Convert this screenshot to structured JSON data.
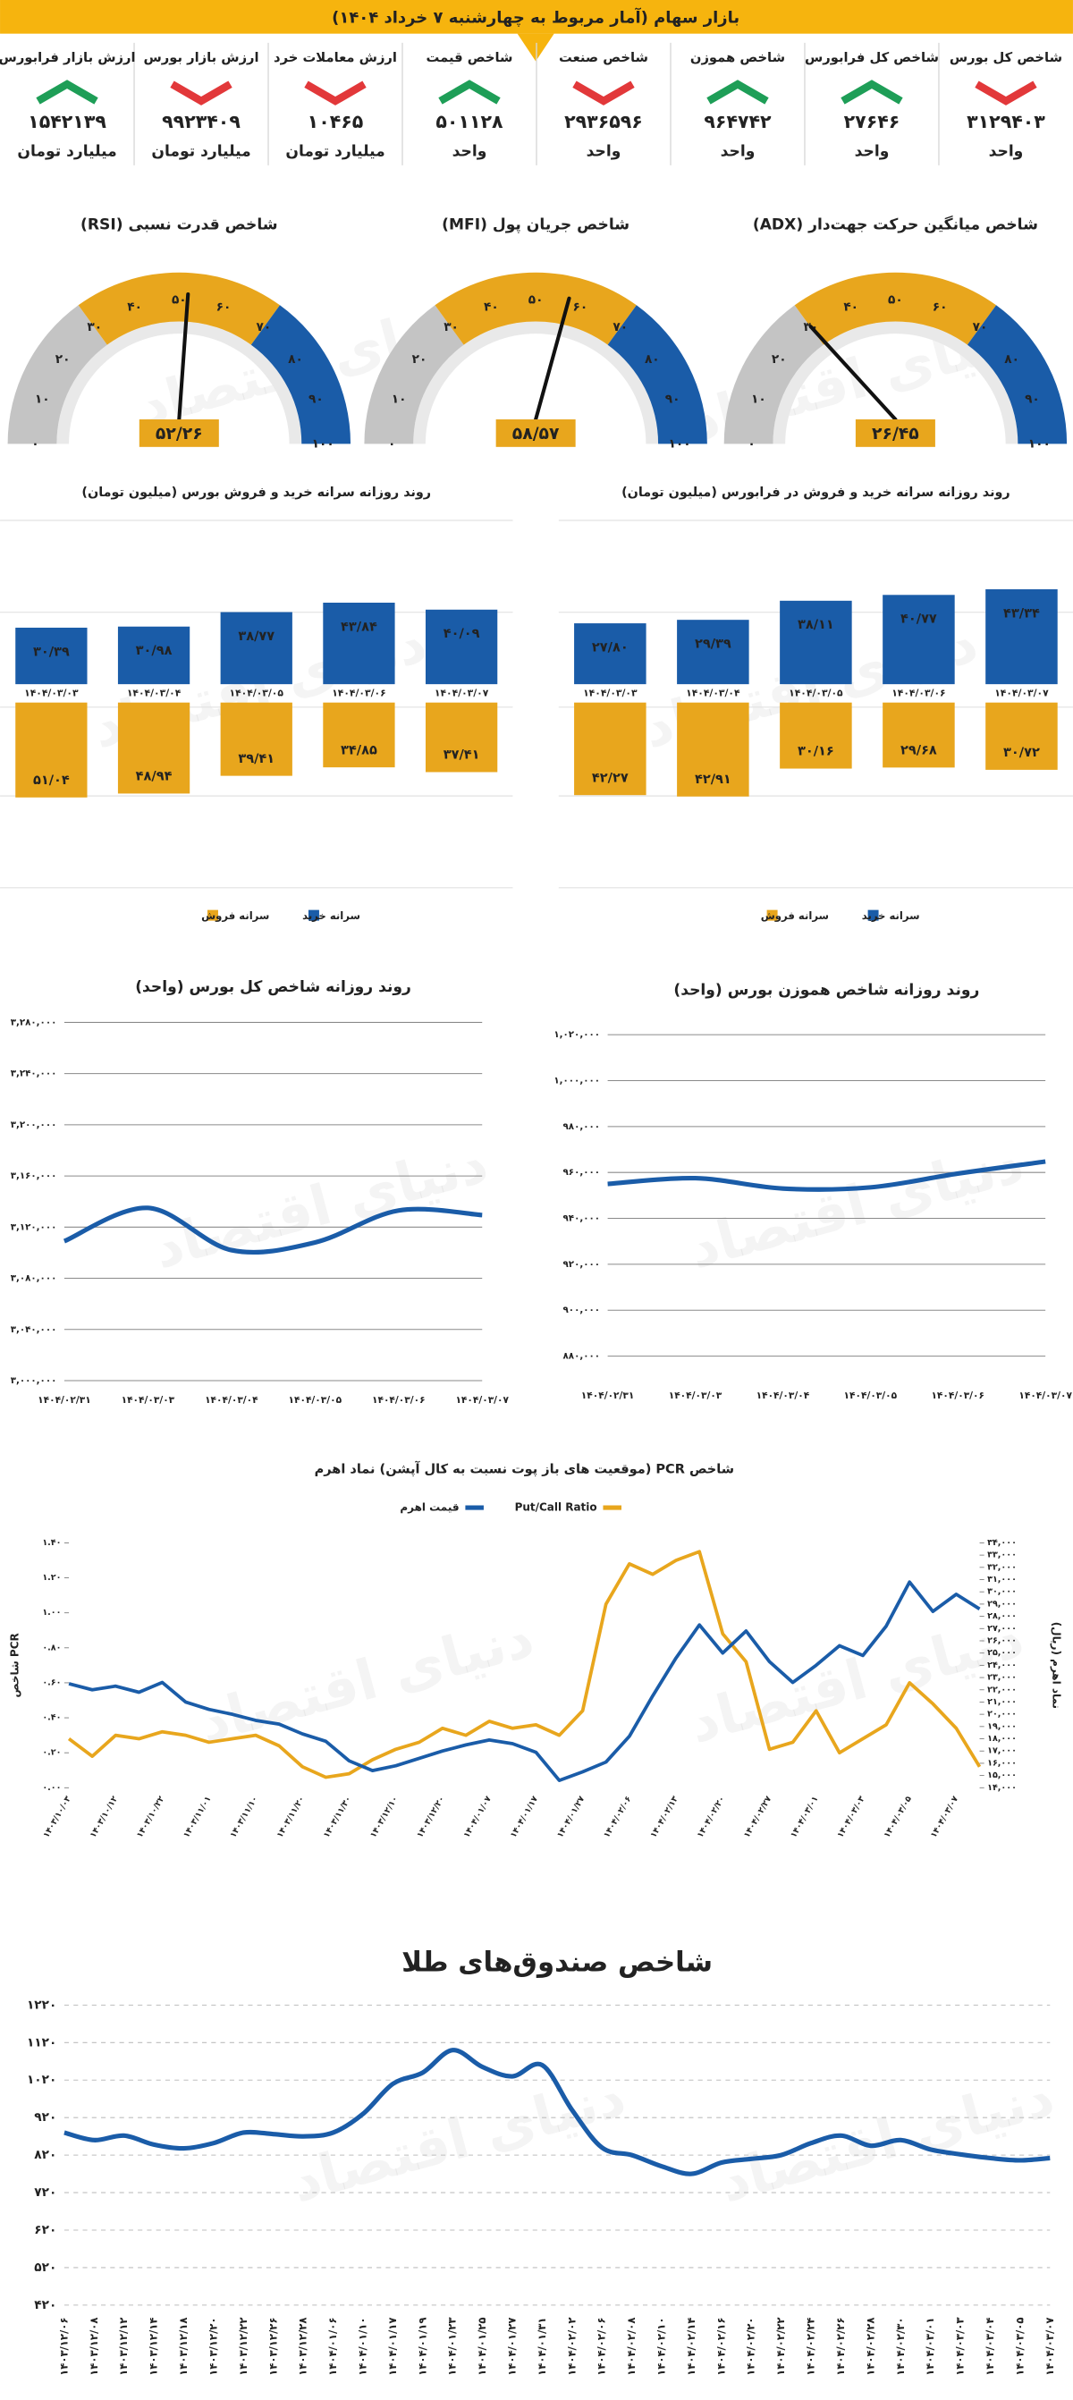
{
  "header": {
    "title": "بازار سهام (آمار مربوط به چهارشنبه ۷ خرداد ۱۴۰۴)"
  },
  "watermark": "دنیای اقتصاد",
  "trend_colors": {
    "up": "#1e9e57",
    "down": "#e2383a"
  },
  "indicators": [
    {
      "label": "شاخص کل بورس",
      "value": "۳۱۲۹۴۰۳",
      "unit": "واحد",
      "trend": "down"
    },
    {
      "label": "شاخص کل فرابورس",
      "value": "۲۷۶۴۶",
      "unit": "واحد",
      "trend": "up"
    },
    {
      "label": "شاخص هموزن",
      "value": "۹۶۴۷۴۲",
      "unit": "واحد",
      "trend": "up"
    },
    {
      "label": "شاخص صنعت",
      "value": "۲۹۳۶۵۹۶",
      "unit": "واحد",
      "trend": "down"
    },
    {
      "label": "شاخص قیمت",
      "value": "۵۰۱۱۲۸",
      "unit": "واحد",
      "trend": "up"
    },
    {
      "label": "ارزش معاملات خرد",
      "value": "۱۰۴۶۵",
      "unit": "میلیارد تومان",
      "trend": "down"
    },
    {
      "label": "ارزش بازار بورس",
      "value": "۹۹۲۳۴۰۹",
      "unit": "میلیارد تومان",
      "trend": "down"
    },
    {
      "label": "ارزش بازار فرابورس",
      "value": "۱۵۴۲۱۳۹",
      "unit": "میلیارد تومان",
      "trend": "up"
    }
  ],
  "chart_data": [
    {
      "type": "gauge",
      "title": "شاخص میانگین حرکت جهت‌دار (ADX)",
      "value": 26.45,
      "value_label": "۲۶/۴۵",
      "xlim": [
        0,
        100
      ],
      "xticks": [
        {
          "value": 0,
          "label": "۰"
        },
        {
          "value": 10,
          "label": "۱۰"
        },
        {
          "value": 20,
          "label": "۲۰"
        },
        {
          "value": 30,
          "label": "۳۰"
        },
        {
          "value": 40,
          "label": "۴۰"
        },
        {
          "value": 50,
          "label": "۵۰"
        },
        {
          "value": 60,
          "label": "۶۰"
        },
        {
          "value": 70,
          "label": "۷۰"
        },
        {
          "value": 80,
          "label": "۸۰"
        },
        {
          "value": 90,
          "label": "۹۰"
        },
        {
          "value": 100,
          "label": "۱۰۰"
        }
      ],
      "bands": [
        {
          "range": [
            0,
            30
          ],
          "color": "#c4c4c4"
        },
        {
          "range": [
            30,
            70
          ],
          "color": "#e8a61d"
        },
        {
          "range": [
            70,
            100
          ],
          "color": "#1a5ca8"
        }
      ]
    },
    {
      "type": "gauge",
      "title": "شاخص جریان پول (MFI)",
      "value": 58.57,
      "value_label": "۵۸/۵۷",
      "xlim": [
        0,
        100
      ],
      "xticks": [
        {
          "value": 0,
          "label": "۰"
        },
        {
          "value": 10,
          "label": "۱۰"
        },
        {
          "value": 20,
          "label": "۲۰"
        },
        {
          "value": 30,
          "label": "۳۰"
        },
        {
          "value": 40,
          "label": "۴۰"
        },
        {
          "value": 50,
          "label": "۵۰"
        },
        {
          "value": 60,
          "label": "۶۰"
        },
        {
          "value": 70,
          "label": "۷۰"
        },
        {
          "value": 80,
          "label": "۸۰"
        },
        {
          "value": 90,
          "label": "۹۰"
        },
        {
          "value": 100,
          "label": "۱۰۰"
        }
      ],
      "bands": [
        {
          "range": [
            0,
            30
          ],
          "color": "#c4c4c4"
        },
        {
          "range": [
            30,
            70
          ],
          "color": "#e8a61d"
        },
        {
          "range": [
            70,
            100
          ],
          "color": "#1a5ca8"
        }
      ]
    },
    {
      "type": "gauge",
      "title": "شاخص قدرت نسبی (RSI)",
      "value": 52.26,
      "value_label": "۵۲/۲۶",
      "xlim": [
        0,
        100
      ],
      "xticks": [
        {
          "value": 0,
          "label": "۰"
        },
        {
          "value": 10,
          "label": "۱۰"
        },
        {
          "value": 20,
          "label": "۲۰"
        },
        {
          "value": 30,
          "label": "۳۰"
        },
        {
          "value": 40,
          "label": "۴۰"
        },
        {
          "value": 50,
          "label": "۵۰"
        },
        {
          "value": 60,
          "label": "۶۰"
        },
        {
          "value": 70,
          "label": "۷۰"
        },
        {
          "value": 80,
          "label": "۸۰"
        },
        {
          "value": 90,
          "label": "۹۰"
        },
        {
          "value": 100,
          "label": "۱۰۰"
        }
      ],
      "bands": [
        {
          "range": [
            0,
            30
          ],
          "color": "#c4c4c4"
        },
        {
          "range": [
            30,
            70
          ],
          "color": "#e8a61d"
        },
        {
          "range": [
            70,
            100
          ],
          "color": "#1a5ca8"
        }
      ]
    },
    {
      "type": "bar",
      "title": "روند روزانه سرانه خرید و فروش بورس (میلیون تومان)",
      "categories": [
        "۱۴۰۴/۰۳/۰۳",
        "۱۴۰۴/۰۳/۰۴",
        "۱۴۰۴/۰۳/۰۵",
        "۱۴۰۴/۰۳/۰۶",
        "۱۴۰۴/۰۳/۰۷"
      ],
      "series": [
        {
          "name": "سرانه خرید",
          "color": "#1a5ca8",
          "values": [
            30.39,
            30.98,
            38.77,
            43.84,
            40.09
          ],
          "value_labels": [
            "۳۰/۳۹",
            "۳۰/۹۸",
            "۳۸/۷۷",
            "۴۳/۸۴",
            "۴۰/۰۹"
          ]
        },
        {
          "name": "سرانه فروش",
          "color": "#e8a61d",
          "values": [
            51.04,
            48.94,
            39.41,
            34.85,
            37.41
          ],
          "value_labels": [
            "۵۱/۰۴",
            "۴۸/۹۴",
            "۳۹/۴۱",
            "۳۴/۸۵",
            "۳۷/۴۱"
          ]
        }
      ],
      "legend": "bottom"
    },
    {
      "type": "bar",
      "title": "روند روزانه سرانه خرید و فروش در فرابورس (میلیون تومان)",
      "categories": [
        "۱۴۰۴/۰۳/۰۳",
        "۱۴۰۴/۰۳/۰۴",
        "۱۴۰۴/۰۳/۰۵",
        "۱۴۰۴/۰۳/۰۶",
        "۱۴۰۴/۰۳/۰۷"
      ],
      "series": [
        {
          "name": "سرانه خرید",
          "color": "#1a5ca8",
          "values": [
            27.8,
            29.39,
            38.11,
            40.77,
            43.34
          ],
          "value_labels": [
            "۲۷/۸۰",
            "۲۹/۳۹",
            "۳۸/۱۱",
            "۴۰/۷۷",
            "۴۳/۳۴"
          ]
        },
        {
          "name": "سرانه فروش",
          "color": "#e8a61d",
          "values": [
            42.27,
            42.91,
            30.16,
            29.68,
            30.72
          ],
          "value_labels": [
            "۴۲/۲۷",
            "۴۲/۹۱",
            "۳۰/۱۶",
            "۲۹/۶۸",
            "۳۰/۷۲"
          ]
        }
      ],
      "legend": "bottom"
    },
    {
      "type": "line",
      "title": "روند روزانه شاخص کل بورس (واحد)",
      "categories": [
        "۱۴۰۴/۰۲/۳۱",
        "۱۴۰۴/۰۳/۰۳",
        "۱۴۰۴/۰۳/۰۴",
        "۱۴۰۴/۰۳/۰۵",
        "۱۴۰۴/۰۳/۰۶",
        "۱۴۰۴/۰۳/۰۷"
      ],
      "series": [
        {
          "color": "#1a5ca8",
          "values": [
            3109000,
            3135000,
            3102000,
            3108000,
            3133000,
            3129403
          ]
        }
      ],
      "ylim": [
        3000000,
        3280000
      ],
      "yticks": [
        {
          "value": 3000000,
          "label": "۳,۰۰۰,۰۰۰"
        },
        {
          "value": 3040000,
          "label": "۳,۰۴۰,۰۰۰"
        },
        {
          "value": 3080000,
          "label": "۳,۰۸۰,۰۰۰"
        },
        {
          "value": 3120000,
          "label": "۳,۱۲۰,۰۰۰"
        },
        {
          "value": 3160000,
          "label": "۳,۱۶۰,۰۰۰"
        },
        {
          "value": 3200000,
          "label": "۳,۲۰۰,۰۰۰"
        },
        {
          "value": 3240000,
          "label": "۳,۲۴۰,۰۰۰"
        },
        {
          "value": 3280000,
          "label": "۳,۲۸۰,۰۰۰"
        }
      ],
      "grid": true,
      "smooth": true
    },
    {
      "type": "line",
      "title": "روند روزانه شاخص هموزن بورس (واحد)",
      "categories": [
        "۱۴۰۴/۰۲/۳۱",
        "۱۴۰۴/۰۳/۰۳",
        "۱۴۰۴/۰۳/۰۴",
        "۱۴۰۴/۰۳/۰۵",
        "۱۴۰۴/۰۳/۰۶",
        "۱۴۰۴/۰۳/۰۷"
      ],
      "series": [
        {
          "color": "#1a5ca8",
          "values": [
            955000,
            957500,
            953000,
            953500,
            959500,
            964742
          ]
        }
      ],
      "ylim": [
        880000,
        1020000
      ],
      "yticks": [
        {
          "value": 880000,
          "label": "۸۸۰,۰۰۰"
        },
        {
          "value": 900000,
          "label": "۹۰۰,۰۰۰"
        },
        {
          "value": 920000,
          "label": "۹۲۰,۰۰۰"
        },
        {
          "value": 940000,
          "label": "۹۴۰,۰۰۰"
        },
        {
          "value": 960000,
          "label": "۹۶۰,۰۰۰"
        },
        {
          "value": 980000,
          "label": "۹۸۰,۰۰۰"
        },
        {
          "value": 1000000,
          "label": "۱,۰۰۰,۰۰۰"
        },
        {
          "value": 1020000,
          "label": "۱,۰۲۰,۰۰۰"
        }
      ],
      "grid": true,
      "smooth": true
    },
    {
      "type": "line",
      "title": "شاخص PCR (موقعیت های باز پوت نسبت به کال آپشن) نماد اهرم",
      "ylabel": "شاخص PCR",
      "y2label": "نماد اهرم (ریال)",
      "legend": "top",
      "categories": [
        "۱۴۰۳/۱۰/۰۳",
        null,
        "۱۴۰۳/۱۰/۱۲",
        null,
        "۱۴۰۳/۱۰/۲۲",
        null,
        "۱۴۰۳/۱۱/۰۱",
        null,
        "۱۴۰۳/۱۱/۱۰",
        null,
        "۱۴۰۳/۱۱/۲۰",
        null,
        "۱۴۰۳/۱۱/۳۰",
        null,
        "۱۴۰۳/۱۲/۱۰",
        null,
        "۱۴۰۳/۱۲/۲۰",
        null,
        "۱۴۰۴/۰۱/۰۷",
        null,
        "۱۴۰۴/۰۱/۱۷",
        null,
        "۱۴۰۴/۰۱/۲۷",
        null,
        "۱۴۰۴/۰۲/۰۶",
        null,
        "۱۴۰۴/۰۲/۱۳",
        null,
        "۱۴۰۴/۰۲/۲۰",
        null,
        "۱۴۰۴/۰۲/۲۷",
        null,
        "۱۴۰۴/۰۳/۰۱",
        null,
        "۱۴۰۴/۰۳/۰۳",
        null,
        "۱۴۰۴/۰۳/۰۵",
        null,
        "۱۴۰۴/۰۳/۰۷",
        null
      ],
      "series": [
        {
          "name": "Put/Call Ratio",
          "color": "#e8a61d",
          "values": [
            0.28,
            0.18,
            0.3,
            0.28,
            0.32,
            0.3,
            0.26,
            0.28,
            0.3,
            0.24,
            0.12,
            0.06,
            0.08,
            0.16,
            0.22,
            0.26,
            0.34,
            0.3,
            0.38,
            0.34,
            0.36,
            0.3,
            0.44,
            1.05,
            1.28,
            1.22,
            1.3,
            1.35,
            0.88,
            0.72,
            0.22,
            0.26,
            0.44,
            0.2,
            0.28,
            0.36,
            0.6,
            0.48,
            0.34,
            0.12
          ]
        },
        {
          "name": "قیمت اهرم",
          "color": "#1a5ca8",
          "axis": "y2",
          "values": [
            22500,
            22000,
            22300,
            21800,
            22600,
            21000,
            20400,
            20000,
            19500,
            19200,
            18400,
            17800,
            16200,
            15400,
            15800,
            16400,
            17000,
            17500,
            17900,
            17600,
            16900,
            14600,
            15300,
            16100,
            18200,
            21500,
            24600,
            27300,
            25000,
            26800,
            24300,
            22600,
            24000,
            25600,
            24800,
            27200,
            30800,
            28400,
            29800,
            28600
          ]
        }
      ],
      "ylim": [
        0,
        1.4
      ],
      "yticks": [
        {
          "value": 0,
          "label": "۰.۰۰"
        },
        {
          "value": 0.2,
          "label": "۰.۲۰"
        },
        {
          "value": 0.4,
          "label": "۰.۴۰"
        },
        {
          "value": 0.6,
          "label": "۰.۶۰"
        },
        {
          "value": 0.8,
          "label": "۰.۸۰"
        },
        {
          "value": 1,
          "label": "۱.۰۰"
        },
        {
          "value": 1.2,
          "label": "۱.۲۰"
        },
        {
          "value": 1.4,
          "label": "۱.۴۰"
        }
      ],
      "y2lim": [
        14000,
        34000
      ],
      "y2ticks": [
        {
          "value": 14000,
          "label": "۱۴,۰۰۰"
        },
        {
          "value": 15000,
          "label": "۱۵,۰۰۰"
        },
        {
          "value": 16000,
          "label": "۱۶,۰۰۰"
        },
        {
          "value": 17000,
          "label": "۱۷,۰۰۰"
        },
        {
          "value": 18000,
          "label": "۱۸,۰۰۰"
        },
        {
          "value": 19000,
          "label": "۱۹,۰۰۰"
        },
        {
          "value": 20000,
          "label": "۲۰,۰۰۰"
        },
        {
          "value": 21000,
          "label": "۲۱,۰۰۰"
        },
        {
          "value": 22000,
          "label": "۲۲,۰۰۰"
        },
        {
          "value": 23000,
          "label": "۲۳,۰۰۰"
        },
        {
          "value": 24000,
          "label": "۲۴,۰۰۰"
        },
        {
          "value": 25000,
          "label": "۲۵,۰۰۰"
        },
        {
          "value": 26000,
          "label": "۲۶,۰۰۰"
        },
        {
          "value": 27000,
          "label": "۲۷,۰۰۰"
        },
        {
          "value": 28000,
          "label": "۲۸,۰۰۰"
        },
        {
          "value": 29000,
          "label": "۲۹,۰۰۰"
        },
        {
          "value": 30000,
          "label": "۳۰,۰۰۰"
        },
        {
          "value": 31000,
          "label": "۳۱,۰۰۰"
        },
        {
          "value": 32000,
          "label": "۳۲,۰۰۰"
        },
        {
          "value": 33000,
          "label": "۳۳,۰۰۰"
        },
        {
          "value": 34000,
          "label": "۳۴,۰۰۰"
        }
      ],
      "grid": false,
      "smooth": false
    },
    {
      "type": "line",
      "title": "شاخص صندوق‌های طلا",
      "categories": [
        "۱۴۰۳/۱۲/۰۶",
        "۱۴۰۳/۱۲/۰۸",
        "۱۴۰۳/۱۲/۱۲",
        "۱۴۰۳/۱۲/۱۴",
        "۱۴۰۳/۱۲/۱۸",
        "۱۴۰۳/۱۲/۲۰",
        "۱۴۰۳/۱۲/۲۲",
        "۱۴۰۳/۱۲/۲۶",
        "۱۴۰۳/۱۲/۲۸",
        "۱۴۰۴/۰۱/۰۶",
        "۱۴۰۴/۰۱/۱۰",
        "۱۴۰۴/۰۱/۱۷",
        "۱۴۰۴/۰۱/۱۹",
        "۱۴۰۴/۰۱/۲۳",
        "۱۴۰۴/۰۱/۲۵",
        "۱۴۰۴/۰۱/۲۷",
        "۱۴۰۴/۰۱/۳۱",
        "۱۴۰۴/۰۲/۰۲",
        "۱۴۰۴/۰۲/۰۶",
        "۱۴۰۴/۰۲/۰۸",
        "۱۴۰۴/۰۲/۱۰",
        "۱۴۰۴/۰۲/۱۴",
        "۱۴۰۴/۰۲/۱۶",
        "۱۴۰۴/۰۲/۲۰",
        "۱۴۰۴/۰۲/۲۲",
        "۱۴۰۴/۰۲/۲۴",
        "۱۴۰۴/۰۲/۲۶",
        "۱۴۰۴/۰۲/۲۸",
        "۱۴۰۴/۰۲/۳۰",
        "۱۴۰۴/۰۳/۰۱",
        "۱۴۰۴/۰۳/۰۳",
        "۱۴۰۴/۰۳/۰۴",
        "۱۴۰۴/۰۳/۰۵",
        "۱۴۰۴/۰۳/۰۷"
      ],
      "series": [
        {
          "color": "#1a5ca8",
          "values": [
            880,
            860,
            872,
            848,
            838,
            852,
            880,
            876,
            870,
            880,
            930,
            1010,
            1040,
            1100,
            1055,
            1030,
            1060,
            940,
            840,
            820,
            790,
            770,
            800,
            810,
            820,
            852,
            872,
            845,
            860,
            835,
            822,
            812,
            806,
            812
          ]
        }
      ],
      "ylim": [
        420,
        1220
      ],
      "yticks": [
        {
          "value": 420,
          "label": "۴۲۰"
        },
        {
          "value": 520,
          "label": "۵۲۰"
        },
        {
          "value": 620,
          "label": "۶۲۰"
        },
        {
          "value": 720,
          "label": "۷۲۰"
        },
        {
          "value": 820,
          "label": "۸۲۰"
        },
        {
          "value": 920,
          "label": "۹۲۰"
        },
        {
          "value": 1020,
          "label": "۱۰۲۰"
        },
        {
          "value": 1120,
          "label": "۱۱۲۰"
        },
        {
          "value": 1220,
          "label": "۱۲۲۰"
        }
      ],
      "grid": true,
      "grid_style": "dashed",
      "smooth": true
    }
  ]
}
